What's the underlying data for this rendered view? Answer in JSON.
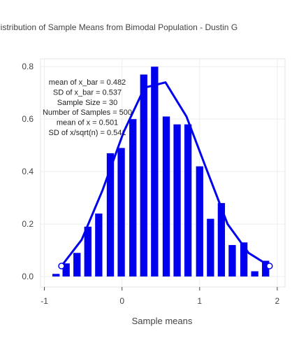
{
  "chart_data": {
    "type": "bar",
    "title": "Distribution of Sample Means from Bimodal Population -  Dustin G",
    "xlabel": "Sample means",
    "ylabel": "",
    "xlim": [
      -1.05,
      2.1
    ],
    "ylim": [
      -0.04,
      0.83
    ],
    "x_ticks": [
      "-1",
      "0",
      "1",
      "2"
    ],
    "y_ticks": [
      "0.0",
      "0.2",
      "0.4",
      "0.6",
      "0.8"
    ],
    "bin_width": 0.1,
    "bar_centers": [
      -0.85,
      -0.72,
      -0.58,
      -0.44,
      -0.3,
      -0.15,
      -0.01,
      0.14,
      0.28,
      0.42,
      0.57,
      0.71,
      0.85,
      1.0,
      1.14,
      1.28,
      1.42,
      1.57,
      1.71,
      1.85
    ],
    "values": [
      0.01,
      0.05,
      0.09,
      0.19,
      0.24,
      0.47,
      0.49,
      0.6,
      0.77,
      0.8,
      0.61,
      0.58,
      0.58,
      0.42,
      0.22,
      0.28,
      0.12,
      0.13,
      0.02,
      0.06
    ],
    "curve_x": [
      -0.78,
      -0.52,
      -0.25,
      0.02,
      0.29,
      0.56,
      0.83,
      1.1,
      1.36,
      1.63,
      1.9
    ],
    "curve_y": [
      0.04,
      0.14,
      0.33,
      0.55,
      0.72,
      0.74,
      0.61,
      0.4,
      0.2,
      0.09,
      0.04
    ],
    "bar_color": "#0000ee",
    "curve_color": "#0000ee",
    "grid": true,
    "annotations": [
      "mean of x_bar = 0.482",
      "SD of x_bar = 0.537",
      "Sample Size = 30",
      "Number of Samples = 500",
      "mean of x = 0.501",
      "SD of x/sqrt(n) = 0.541"
    ]
  }
}
